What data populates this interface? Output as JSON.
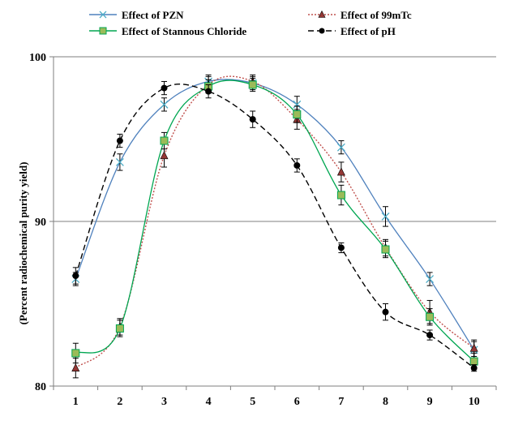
{
  "chart_data": {
    "type": "line",
    "title": "",
    "xlabel": "",
    "ylabel": "(Percent radiochemical purity yield)",
    "x": [
      1,
      2,
      3,
      4,
      5,
      6,
      7,
      8,
      9,
      10
    ],
    "x_tick_labels": [
      "1",
      "2",
      "3",
      "4",
      "5",
      "6",
      "7",
      "8",
      "9",
      "10"
    ],
    "ylim": [
      80,
      100
    ],
    "y_ticks": [
      80,
      90,
      100
    ],
    "y_tick_labels": [
      "80",
      "90",
      "100"
    ],
    "grid": "horizontal",
    "legend_position": "top",
    "series": [
      {
        "name": "Effect of PZN",
        "marker": "x",
        "line_style": "solid",
        "color": "#4f81bd",
        "marker_color": "#4bacc6",
        "values": [
          86.5,
          93.6,
          97.1,
          98.5,
          98.4,
          97.1,
          94.5,
          90.3,
          86.5,
          82.2
        ],
        "errors": [
          0.4,
          0.5,
          0.4,
          0.4,
          0.4,
          0.5,
          0.4,
          0.6,
          0.4,
          0.5
        ]
      },
      {
        "name": "Effect of 99mTc",
        "marker": "triangle",
        "line_style": "dotted",
        "color": "#c0504d",
        "marker_color": "#953735",
        "values": [
          81.1,
          83.6,
          94.0,
          98.3,
          98.5,
          96.2,
          93.0,
          88.4,
          84.5,
          82.3
        ],
        "errors": [
          0.6,
          0.5,
          0.7,
          0.5,
          0.4,
          0.6,
          0.6,
          0.5,
          0.7,
          0.5
        ]
      },
      {
        "name": "Effect of Stannous Chloride",
        "marker": "square",
        "line_style": "solid",
        "color": "#00a651",
        "marker_color": "#9bbb59",
        "values": [
          82.0,
          83.5,
          94.9,
          98.2,
          98.3,
          96.5,
          91.6,
          88.3,
          84.2,
          81.5
        ],
        "errors": [
          0.6,
          0.5,
          0.5,
          0.4,
          0.4,
          0.5,
          0.6,
          0.5,
          0.5,
          0.5
        ]
      },
      {
        "name": "Effect of pH",
        "marker": "circle",
        "line_style": "dashed",
        "color": "#000000",
        "marker_color": "#000000",
        "values": [
          86.7,
          94.9,
          98.1,
          97.9,
          96.2,
          93.4,
          88.4,
          84.5,
          83.1,
          81.1
        ],
        "errors": [
          0.5,
          0.4,
          0.4,
          0.4,
          0.5,
          0.4,
          0.3,
          0.5,
          0.3,
          0.2
        ]
      }
    ]
  }
}
